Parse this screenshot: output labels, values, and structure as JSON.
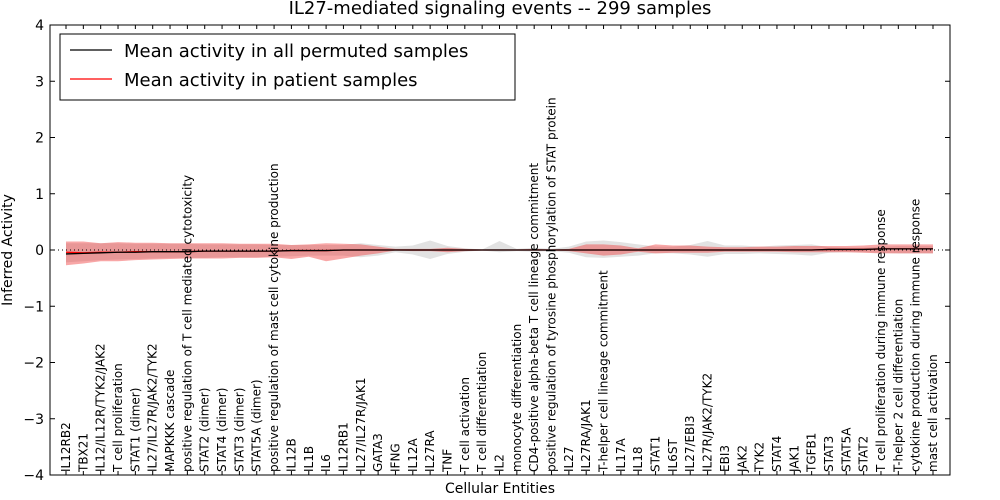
{
  "chart_data": {
    "type": "line",
    "title": "IL27-mediated signaling events -- 299 samples",
    "xlabel": "Cellular Entities",
    "ylabel": "Inferred Activity",
    "ylim": [
      -4,
      4
    ],
    "yticks": [
      "4",
      "3",
      "2",
      "1",
      "0",
      "−1",
      "−2",
      "−3",
      "−4"
    ],
    "legend": {
      "placement": "top-left",
      "entries": [
        {
          "label": "Mean activity in all permuted samples",
          "color": "#000000"
        },
        {
          "label": "Mean activity in patient samples",
          "color": "#ff0000"
        }
      ]
    },
    "categories": [
      "IL12RB2",
      "TBX21",
      "IL12/IL12R/TYK2/JAK2",
      "T cell proliferation",
      "STAT1 (dimer)",
      "IL27/IL27R/JAK2/TYK2",
      "MAPKKK cascade",
      "positive regulation of T cell mediated cytotoxicity",
      "STAT2 (dimer)",
      "STAT4 (dimer)",
      "STAT3 (dimer)",
      "STAT5A (dimer)",
      "positive regulation of mast cell cytokine production",
      "IL12B",
      "IL1B",
      "IL6",
      "IL12RB1",
      "IL27/IL27R/JAK1",
      "GATA3",
      "IFNG",
      "IL12A",
      "IL27RA",
      "TNF",
      "T cell activation",
      "T cell differentiation",
      "IL2",
      "monocyte differentiation",
      "CD4-positive alpha-beta T cell lineage commitment",
      "positive regulation of tyrosine phosphorylation of STAT protein",
      "IL27",
      "IL27RA/JAK1",
      "T-helper cell lineage commitment",
      "IL17A",
      "IL18",
      "STAT1",
      "IL6ST",
      "IL27/EBI3",
      "IL27R/JAK2/TYK2",
      "EBI3",
      "JAK2",
      "TYK2",
      "STAT4",
      "JAK1",
      "TGFB1",
      "STAT3",
      "STAT5A",
      "STAT2",
      "T cell proliferation during immune response",
      "T-helper 2 cell differentiation",
      "cytokine production during immune response",
      "mast cell activation"
    ],
    "series": [
      {
        "name": "Mean activity in all permuted samples",
        "color": "#000000",
        "values": [
          -0.07,
          -0.06,
          -0.05,
          -0.04,
          -0.04,
          -0.03,
          -0.03,
          -0.03,
          -0.02,
          -0.02,
          -0.02,
          -0.02,
          -0.02,
          -0.01,
          -0.01,
          -0.01,
          0.0,
          0.0,
          0.0,
          0.0,
          0.0,
          0.0,
          0.0,
          0.0,
          0.0,
          0.0,
          0.0,
          0.0,
          0.0,
          0.0,
          0.0,
          0.0,
          0.0,
          0.0,
          0.0,
          0.0,
          0.0,
          0.0,
          0.0,
          0.0,
          0.0,
          0.0,
          0.0,
          0.0,
          0.01,
          0.01,
          0.01,
          0.02,
          0.02,
          0.02,
          0.02
        ],
        "band_low": [
          -0.22,
          -0.2,
          -0.18,
          -0.17,
          -0.16,
          -0.15,
          -0.14,
          -0.14,
          -0.14,
          -0.13,
          -0.13,
          -0.13,
          -0.12,
          -0.11,
          -0.1,
          -0.1,
          -0.1,
          -0.13,
          -0.1,
          -0.04,
          -0.08,
          -0.16,
          -0.07,
          -0.03,
          -0.01,
          -0.04,
          -0.02,
          -0.03,
          -0.02,
          -0.05,
          -0.13,
          -0.14,
          -0.12,
          -0.1,
          -0.06,
          -0.06,
          -0.08,
          -0.12,
          -0.07,
          -0.07,
          -0.06,
          -0.07,
          -0.08,
          -0.1,
          -0.05,
          -0.04,
          -0.04,
          -0.05,
          -0.06,
          -0.06,
          -0.06
        ],
        "band_high": [
          0.12,
          0.12,
          0.12,
          0.12,
          0.11,
          0.11,
          0.11,
          0.11,
          0.1,
          0.1,
          0.1,
          0.1,
          0.09,
          0.09,
          0.09,
          0.09,
          0.09,
          0.12,
          0.09,
          0.06,
          0.08,
          0.17,
          0.07,
          0.03,
          0.01,
          0.16,
          0.02,
          0.04,
          0.02,
          0.06,
          0.15,
          0.17,
          0.14,
          0.1,
          0.06,
          0.06,
          0.09,
          0.16,
          0.08,
          0.08,
          0.06,
          0.08,
          0.09,
          0.1,
          0.05,
          0.04,
          0.04,
          0.06,
          0.07,
          0.07,
          0.07
        ]
      },
      {
        "name": "Mean activity in patient samples",
        "color": "#ff0000",
        "values": [
          -0.04,
          -0.05,
          -0.04,
          -0.04,
          -0.03,
          -0.03,
          -0.03,
          -0.03,
          -0.02,
          -0.02,
          -0.02,
          -0.02,
          -0.02,
          -0.01,
          -0.01,
          -0.01,
          0.0,
          0.0,
          0.0,
          0.0,
          0.0,
          0.0,
          0.0,
          0.0,
          0.0,
          0.0,
          0.0,
          0.0,
          0.0,
          0.0,
          0.0,
          0.0,
          0.0,
          0.0,
          0.0,
          0.0,
          0.0,
          0.0,
          0.0,
          0.0,
          0.0,
          0.0,
          0.0,
          0.0,
          0.01,
          0.01,
          0.01,
          0.02,
          0.02,
          0.02,
          0.02
        ],
        "band_low": [
          -0.27,
          -0.24,
          -0.2,
          -0.2,
          -0.18,
          -0.17,
          -0.16,
          -0.15,
          -0.15,
          -0.15,
          -0.14,
          -0.14,
          -0.13,
          -0.16,
          -0.12,
          -0.2,
          -0.15,
          -0.1,
          -0.06,
          -0.01,
          -0.02,
          -0.02,
          -0.04,
          -0.02,
          -0.01,
          -0.01,
          -0.01,
          -0.01,
          -0.01,
          -0.02,
          -0.06,
          -0.1,
          -0.08,
          -0.03,
          -0.06,
          -0.05,
          -0.05,
          -0.05,
          -0.03,
          -0.03,
          -0.03,
          -0.03,
          -0.04,
          -0.04,
          -0.04,
          -0.04,
          -0.05,
          -0.06,
          -0.06,
          -0.06,
          -0.06
        ],
        "band_high": [
          0.15,
          0.15,
          0.12,
          0.14,
          0.13,
          0.13,
          0.12,
          0.12,
          0.12,
          0.12,
          0.11,
          0.11,
          0.11,
          0.09,
          0.1,
          0.12,
          0.11,
          0.1,
          0.06,
          0.02,
          0.02,
          0.02,
          0.04,
          0.02,
          0.01,
          0.01,
          0.01,
          0.02,
          0.01,
          0.02,
          0.1,
          0.1,
          0.08,
          0.03,
          0.1,
          0.08,
          0.08,
          0.06,
          0.05,
          0.05,
          0.06,
          0.06,
          0.07,
          0.07,
          0.07,
          0.07,
          0.08,
          0.1,
          0.1,
          0.1,
          0.1
        ]
      }
    ]
  }
}
